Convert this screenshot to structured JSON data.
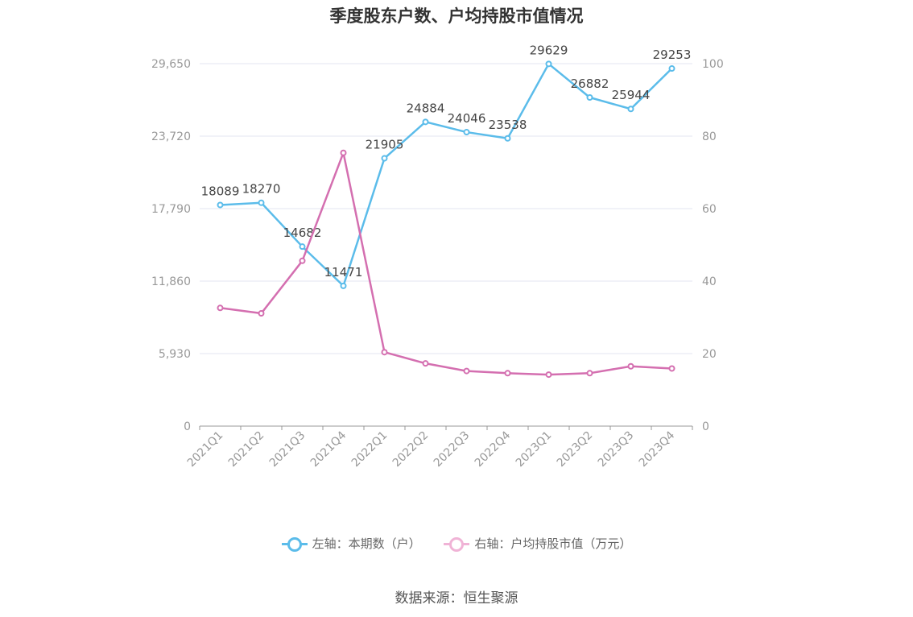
{
  "chart_data": {
    "type": "line",
    "title": "季度股东户数、户均持股市值情况",
    "categories": [
      "2021Q1",
      "2021Q2",
      "2021Q3",
      "2021Q4",
      "2022Q1",
      "2022Q2",
      "2022Q3",
      "2022Q4",
      "2023Q1",
      "2023Q2",
      "2023Q3",
      "2023Q4"
    ],
    "left_axis": {
      "ticks": [
        "0",
        "5,930",
        "11,860",
        "17,790",
        "23,720",
        "29,650"
      ],
      "ylim": [
        0,
        29650
      ]
    },
    "right_axis": {
      "ticks": [
        "0",
        "20",
        "40",
        "60",
        "80",
        "100"
      ],
      "ylim": [
        0,
        100
      ]
    },
    "grid": true,
    "legend_position": "bottom",
    "series": [
      {
        "name": "左轴：本期数（户）",
        "axis": "left",
        "color": "#5bbcea",
        "values": [
          18089,
          18270,
          14682,
          11471,
          21905,
          24884,
          24046,
          23538,
          29629,
          26882,
          25944,
          29253
        ],
        "labels": [
          "18089",
          "18270",
          "14682",
          "11471",
          "21905",
          "24884",
          "24046",
          "23538",
          "29629",
          "26882",
          "25944",
          "29253"
        ]
      },
      {
        "name": "右轴：户均持股市值（万元）",
        "axis": "right",
        "color": "#d46fb0",
        "values": [
          32.6,
          31.1,
          45.6,
          75.4,
          20.4,
          17.3,
          15.2,
          14.6,
          14.2,
          14.6,
          16.5,
          15.9
        ]
      }
    ]
  },
  "source": "数据来源：恒生聚源"
}
